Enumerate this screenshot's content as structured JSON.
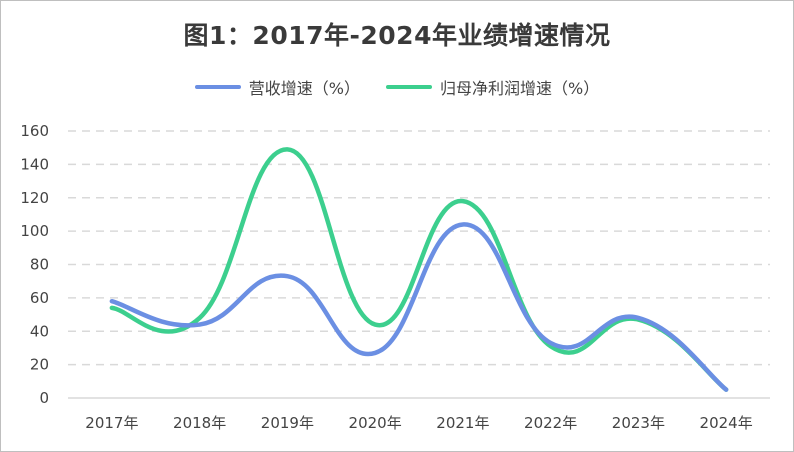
{
  "chart_data": {
    "type": "line",
    "title": "图1：2017年-2024年业绩增速情况",
    "categories": [
      "2017年",
      "2018年",
      "2019年",
      "2020年",
      "2021年",
      "2022年",
      "2023年",
      "2024年"
    ],
    "yticks": [
      "0",
      "20",
      "40",
      "60",
      "80",
      "100",
      "120",
      "140",
      "160"
    ],
    "ylim": [
      0,
      160
    ],
    "grid": true,
    "legend_position": "top",
    "smooth": true,
    "series": [
      {
        "name": "营收增速（%）",
        "color": "#6b8fe3",
        "values": [
          58,
          44,
          73,
          27,
          104,
          33,
          48,
          5
        ]
      },
      {
        "name": "归母净利润增速（%）",
        "color": "#3ccf8e",
        "values": [
          54,
          48,
          149,
          44,
          118,
          31,
          47,
          5
        ]
      }
    ]
  }
}
